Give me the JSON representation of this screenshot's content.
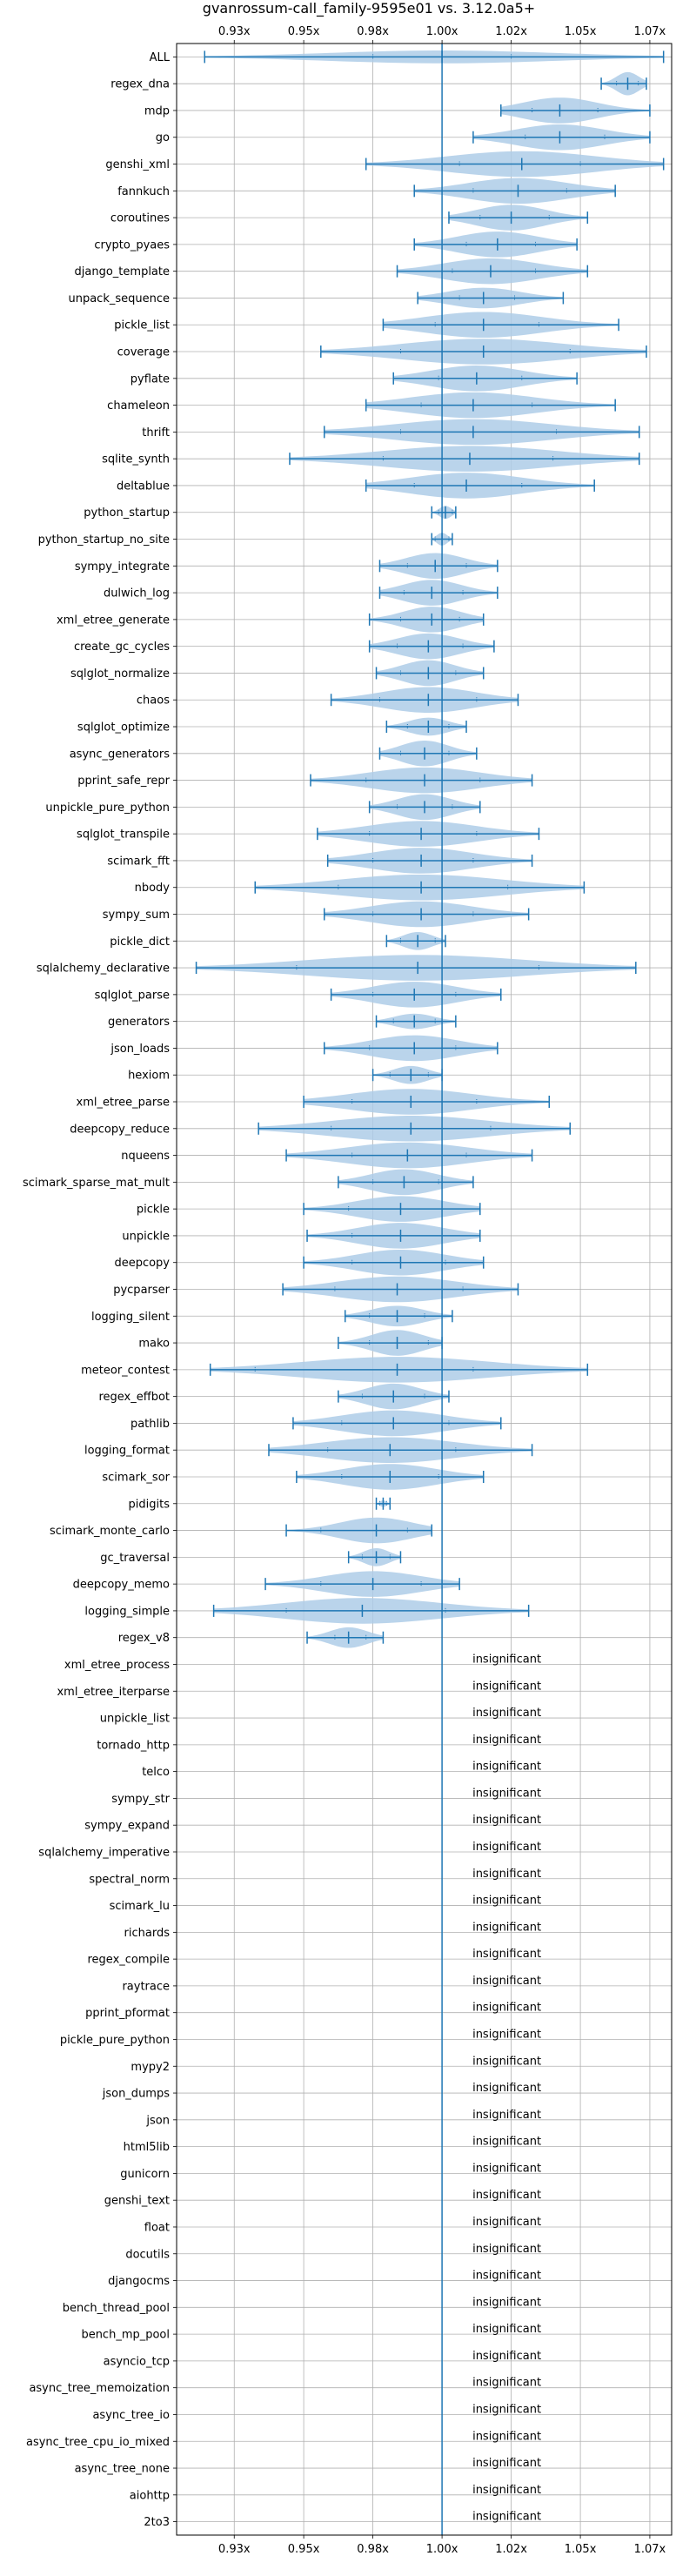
{
  "chart_data": {
    "type": "violin",
    "title": "gvanrossum-call_family-9595e01 vs. 3.12.0a5+",
    "x_tick_labels": [
      "0.93x",
      "0.95x",
      "0.98x",
      "1.00x",
      "1.02x",
      "1.05x",
      "1.07x"
    ],
    "x_ticks": [
      0.9333,
      0.9556,
      0.9778,
      1.0,
      1.0222,
      1.0444,
      1.0667
    ],
    "xlim": [
      0.9148,
      1.0737
    ],
    "reference_line": 1.0,
    "grid": true,
    "accent_color": "#1f77b4",
    "violin_color": "#aecde8",
    "insignificant_label": "insignificant",
    "benchmarks": [
      {
        "name": "ALL",
        "min": 0.9238,
        "mean": 1.0,
        "max": 1.0711,
        "q1": 0.9778,
        "q3": 1.0222,
        "width": 0.5,
        "significant": true
      },
      {
        "name": "regex_dna",
        "min": 1.0511,
        "mean": 1.0596,
        "max": 1.0656,
        "q1": 1.056,
        "q3": 1.063,
        "width": 0.9,
        "significant": true
      },
      {
        "name": "mdp",
        "min": 1.0189,
        "mean": 1.0378,
        "max": 1.0667,
        "q1": 1.0289,
        "q3": 1.05,
        "width": 1.0,
        "significant": true
      },
      {
        "name": "go",
        "min": 1.01,
        "mean": 1.0378,
        "max": 1.0667,
        "q1": 1.0267,
        "q3": 1.0522,
        "width": 1.0,
        "significant": true
      },
      {
        "name": "genshi_xml",
        "min": 0.9756,
        "mean": 1.0256,
        "max": 1.0711,
        "q1": 1.0056,
        "q3": 1.0444,
        "width": 1.0,
        "significant": true
      },
      {
        "name": "fannkuch",
        "min": 0.9911,
        "mean": 1.0244,
        "max": 1.0556,
        "q1": 1.01,
        "q3": 1.04,
        "width": 1.0,
        "significant": true
      },
      {
        "name": "coroutines",
        "min": 1.0022,
        "mean": 1.0222,
        "max": 1.0467,
        "q1": 1.0122,
        "q3": 1.0344,
        "width": 1.0,
        "significant": true
      },
      {
        "name": "crypto_pyaes",
        "min": 0.9911,
        "mean": 1.0178,
        "max": 1.0433,
        "q1": 1.0078,
        "q3": 1.03,
        "width": 1.0,
        "significant": true
      },
      {
        "name": "django_template",
        "min": 0.9856,
        "mean": 1.0156,
        "max": 1.0467,
        "q1": 1.0033,
        "q3": 1.03,
        "width": 1.0,
        "significant": true
      },
      {
        "name": "unpack_sequence",
        "min": 0.9922,
        "mean": 1.0133,
        "max": 1.0389,
        "q1": 1.0056,
        "q3": 1.0233,
        "width": 0.8,
        "significant": true
      },
      {
        "name": "pickle_list",
        "min": 0.9811,
        "mean": 1.0133,
        "max": 1.0567,
        "q1": 0.9978,
        "q3": 1.0311,
        "width": 1.0,
        "significant": true
      },
      {
        "name": "coverage",
        "min": 0.9611,
        "mean": 1.0133,
        "max": 1.0656,
        "q1": 0.9867,
        "q3": 1.0411,
        "width": 1.0,
        "significant": true
      },
      {
        "name": "pyflate",
        "min": 0.9844,
        "mean": 1.0111,
        "max": 1.0433,
        "q1": 0.9989,
        "q3": 1.0256,
        "width": 1.0,
        "significant": true
      },
      {
        "name": "chameleon",
        "min": 0.9756,
        "mean": 1.01,
        "max": 1.0556,
        "q1": 0.9933,
        "q3": 1.0289,
        "width": 1.0,
        "significant": true
      },
      {
        "name": "thrift",
        "min": 0.9622,
        "mean": 1.01,
        "max": 1.0633,
        "q1": 0.9867,
        "q3": 1.0367,
        "width": 1.0,
        "significant": true
      },
      {
        "name": "sqlite_synth",
        "min": 0.9511,
        "mean": 1.0089,
        "max": 1.0633,
        "q1": 0.9811,
        "q3": 1.0356,
        "width": 1.0,
        "significant": true
      },
      {
        "name": "deltablue",
        "min": 0.9756,
        "mean": 1.0078,
        "max": 1.0489,
        "q1": 0.9911,
        "q3": 1.0256,
        "width": 1.0,
        "significant": true
      },
      {
        "name": "python_startup",
        "min": 0.9967,
        "mean": 1.0011,
        "max": 1.0044,
        "q1": 0.9989,
        "q3": 1.0033,
        "width": 0.5,
        "significant": true
      },
      {
        "name": "python_startup_no_site",
        "min": 0.9967,
        "mean": 1.0,
        "max": 1.0033,
        "q1": 0.9978,
        "q3": 1.0022,
        "width": 0.5,
        "significant": true
      },
      {
        "name": "sympy_integrate",
        "min": 0.98,
        "mean": 0.9978,
        "max": 1.0178,
        "q1": 0.9889,
        "q3": 1.0078,
        "width": 1.0,
        "significant": true
      },
      {
        "name": "dulwich_log",
        "min": 0.98,
        "mean": 0.9967,
        "max": 1.0178,
        "q1": 0.9878,
        "q3": 1.0067,
        "width": 1.0,
        "significant": true
      },
      {
        "name": "xml_etree_generate",
        "min": 0.9767,
        "mean": 0.9967,
        "max": 1.0133,
        "q1": 0.9867,
        "q3": 1.0056,
        "width": 1.0,
        "significant": true
      },
      {
        "name": "create_gc_cycles",
        "min": 0.9767,
        "mean": 0.9956,
        "max": 1.0167,
        "q1": 0.9856,
        "q3": 1.0067,
        "width": 1.0,
        "significant": true
      },
      {
        "name": "sqlglot_normalize",
        "min": 0.9789,
        "mean": 0.9956,
        "max": 1.0133,
        "q1": 0.9867,
        "q3": 1.0044,
        "width": 1.0,
        "significant": true
      },
      {
        "name": "chaos",
        "min": 0.9644,
        "mean": 0.9956,
        "max": 1.0244,
        "q1": 0.98,
        "q3": 1.0111,
        "width": 1.0,
        "significant": true
      },
      {
        "name": "sqlglot_optimize",
        "min": 0.9822,
        "mean": 0.9956,
        "max": 1.0078,
        "q1": 0.9889,
        "q3": 1.0022,
        "width": 0.7,
        "significant": true
      },
      {
        "name": "async_generators",
        "min": 0.98,
        "mean": 0.9944,
        "max": 1.0111,
        "q1": 0.9867,
        "q3": 1.0022,
        "width": 1.0,
        "significant": true
      },
      {
        "name": "pprint_safe_repr",
        "min": 0.9578,
        "mean": 0.9944,
        "max": 1.0289,
        "q1": 0.9756,
        "q3": 1.0122,
        "width": 1.0,
        "significant": true
      },
      {
        "name": "unpickle_pure_python",
        "min": 0.9767,
        "mean": 0.9944,
        "max": 1.0122,
        "q1": 0.9856,
        "q3": 1.0033,
        "width": 1.0,
        "significant": true
      },
      {
        "name": "sqlglot_transpile",
        "min": 0.96,
        "mean": 0.9933,
        "max": 1.0311,
        "q1": 0.9767,
        "q3": 1.0111,
        "width": 1.0,
        "significant": true
      },
      {
        "name": "scimark_fft",
        "min": 0.9633,
        "mean": 0.9933,
        "max": 1.0289,
        "q1": 0.9778,
        "q3": 1.01,
        "width": 1.0,
        "significant": true
      },
      {
        "name": "nbody",
        "min": 0.94,
        "mean": 0.9933,
        "max": 1.0456,
        "q1": 0.9667,
        "q3": 1.0211,
        "width": 1.0,
        "significant": true
      },
      {
        "name": "sympy_sum",
        "min": 0.9622,
        "mean": 0.9933,
        "max": 1.0278,
        "q1": 0.9778,
        "q3": 1.01,
        "width": 1.0,
        "significant": true
      },
      {
        "name": "pickle_dict",
        "min": 0.9822,
        "mean": 0.9922,
        "max": 1.0011,
        "q1": 0.9867,
        "q3": 0.9978,
        "width": 0.7,
        "significant": true
      },
      {
        "name": "sqlalchemy_declarative",
        "min": 0.9211,
        "mean": 0.9922,
        "max": 1.0622,
        "q1": 0.9533,
        "q3": 1.0311,
        "width": 1.0,
        "significant": true
      },
      {
        "name": "sqlglot_parse",
        "min": 0.9644,
        "mean": 0.9911,
        "max": 1.0189,
        "q1": 0.9778,
        "q3": 1.0044,
        "width": 1.0,
        "significant": true
      },
      {
        "name": "generators",
        "min": 0.9789,
        "mean": 0.9911,
        "max": 1.0044,
        "q1": 0.9844,
        "q3": 0.9978,
        "width": 0.6,
        "significant": true
      },
      {
        "name": "json_loads",
        "min": 0.9622,
        "mean": 0.9911,
        "max": 1.0178,
        "q1": 0.9767,
        "q3": 1.0044,
        "width": 1.0,
        "significant": true
      },
      {
        "name": "hexiom",
        "min": 0.9778,
        "mean": 0.99,
        "max": 1.0,
        "q1": 0.9833,
        "q3": 0.9956,
        "width": 0.7,
        "significant": true
      },
      {
        "name": "xml_etree_parse",
        "min": 0.9556,
        "mean": 0.99,
        "max": 1.0344,
        "q1": 0.9711,
        "q3": 1.0111,
        "width": 1.0,
        "significant": true
      },
      {
        "name": "deepcopy_reduce",
        "min": 0.9411,
        "mean": 0.99,
        "max": 1.0411,
        "q1": 0.9644,
        "q3": 1.0156,
        "width": 1.0,
        "significant": true
      },
      {
        "name": "nqueens",
        "min": 0.95,
        "mean": 0.9889,
        "max": 1.0289,
        "q1": 0.9711,
        "q3": 1.0078,
        "width": 1.0,
        "significant": true
      },
      {
        "name": "scimark_sparse_mat_mult",
        "min": 0.9667,
        "mean": 0.9878,
        "max": 1.01,
        "q1": 0.9778,
        "q3": 0.9989,
        "width": 1.0,
        "significant": true
      },
      {
        "name": "pickle",
        "min": 0.9556,
        "mean": 0.9867,
        "max": 1.0122,
        "q1": 0.97,
        "q3": 1.0,
        "width": 1.0,
        "significant": true
      },
      {
        "name": "unpickle",
        "min": 0.9567,
        "mean": 0.9867,
        "max": 1.0122,
        "q1": 0.9711,
        "q3": 1.0,
        "width": 1.0,
        "significant": true
      },
      {
        "name": "deepcopy",
        "min": 0.9556,
        "mean": 0.9867,
        "max": 1.0133,
        "q1": 0.9711,
        "q3": 1.0011,
        "width": 1.0,
        "significant": true
      },
      {
        "name": "pycparser",
        "min": 0.9489,
        "mean": 0.9856,
        "max": 1.0244,
        "q1": 0.9656,
        "q3": 1.0067,
        "width": 1.0,
        "significant": true
      },
      {
        "name": "logging_silent",
        "min": 0.9689,
        "mean": 0.9856,
        "max": 1.0033,
        "q1": 0.9767,
        "q3": 0.9944,
        "width": 0.8,
        "significant": true
      },
      {
        "name": "mako",
        "min": 0.9667,
        "mean": 0.9856,
        "max": 1.0,
        "q1": 0.9767,
        "q3": 0.9956,
        "width": 1.0,
        "significant": true
      },
      {
        "name": "meteor_contest",
        "min": 0.9256,
        "mean": 0.9856,
        "max": 1.0467,
        "q1": 0.94,
        "q3": 1.01,
        "width": 1.0,
        "significant": true
      },
      {
        "name": "regex_effbot",
        "min": 0.9667,
        "mean": 0.9844,
        "max": 1.0022,
        "q1": 0.9744,
        "q3": 0.9944,
        "width": 1.0,
        "significant": true
      },
      {
        "name": "pathlib",
        "min": 0.9522,
        "mean": 0.9844,
        "max": 1.0189,
        "q1": 0.9678,
        "q3": 1.0022,
        "width": 1.0,
        "significant": true
      },
      {
        "name": "logging_format",
        "min": 0.9444,
        "mean": 0.9833,
        "max": 1.0289,
        "q1": 0.9633,
        "q3": 1.0044,
        "width": 1.0,
        "significant": true
      },
      {
        "name": "scimark_sor",
        "min": 0.9533,
        "mean": 0.9833,
        "max": 1.0133,
        "q1": 0.9678,
        "q3": 0.9989,
        "width": 1.0,
        "significant": true
      },
      {
        "name": "pidigits",
        "min": 0.9789,
        "mean": 0.9811,
        "max": 0.9833,
        "q1": 0.98,
        "q3": 0.9822,
        "width": 0.25,
        "significant": true
      },
      {
        "name": "scimark_monte_carlo",
        "min": 0.95,
        "mean": 0.9789,
        "max": 0.9967,
        "q1": 0.9611,
        "q3": 0.9889,
        "width": 1.0,
        "significant": true
      },
      {
        "name": "gc_traversal",
        "min": 0.97,
        "mean": 0.9789,
        "max": 0.9867,
        "q1": 0.9744,
        "q3": 0.9833,
        "width": 0.7,
        "significant": true
      },
      {
        "name": "deepcopy_memo",
        "min": 0.9433,
        "mean": 0.9778,
        "max": 1.0056,
        "q1": 0.9611,
        "q3": 0.9933,
        "width": 1.0,
        "significant": true
      },
      {
        "name": "logging_simple",
        "min": 0.9267,
        "mean": 0.9744,
        "max": 1.0278,
        "q1": 0.95,
        "q3": 1.0011,
        "width": 1.0,
        "significant": true
      },
      {
        "name": "regex_v8",
        "min": 0.9567,
        "mean": 0.97,
        "max": 0.9811,
        "q1": 0.9656,
        "q3": 0.9756,
        "width": 0.8,
        "significant": true
      },
      {
        "name": "xml_etree_process",
        "significant": false
      },
      {
        "name": "xml_etree_iterparse",
        "significant": false
      },
      {
        "name": "unpickle_list",
        "significant": false
      },
      {
        "name": "tornado_http",
        "significant": false
      },
      {
        "name": "telco",
        "significant": false
      },
      {
        "name": "sympy_str",
        "significant": false
      },
      {
        "name": "sympy_expand",
        "significant": false
      },
      {
        "name": "sqlalchemy_imperative",
        "significant": false
      },
      {
        "name": "spectral_norm",
        "significant": false
      },
      {
        "name": "scimark_lu",
        "significant": false
      },
      {
        "name": "richards",
        "significant": false
      },
      {
        "name": "regex_compile",
        "significant": false
      },
      {
        "name": "raytrace",
        "significant": false
      },
      {
        "name": "pprint_pformat",
        "significant": false
      },
      {
        "name": "pickle_pure_python",
        "significant": false
      },
      {
        "name": "mypy2",
        "significant": false
      },
      {
        "name": "json_dumps",
        "significant": false
      },
      {
        "name": "json",
        "significant": false
      },
      {
        "name": "html5lib",
        "significant": false
      },
      {
        "name": "gunicorn",
        "significant": false
      },
      {
        "name": "genshi_text",
        "significant": false
      },
      {
        "name": "float",
        "significant": false
      },
      {
        "name": "docutils",
        "significant": false
      },
      {
        "name": "djangocms",
        "significant": false
      },
      {
        "name": "bench_thread_pool",
        "significant": false
      },
      {
        "name": "bench_mp_pool",
        "significant": false
      },
      {
        "name": "asyncio_tcp",
        "significant": false
      },
      {
        "name": "async_tree_memoization",
        "significant": false
      },
      {
        "name": "async_tree_io",
        "significant": false
      },
      {
        "name": "async_tree_cpu_io_mixed",
        "significant": false
      },
      {
        "name": "async_tree_none",
        "significant": false
      },
      {
        "name": "aiohttp",
        "significant": false
      },
      {
        "name": "2to3",
        "significant": false
      }
    ]
  }
}
